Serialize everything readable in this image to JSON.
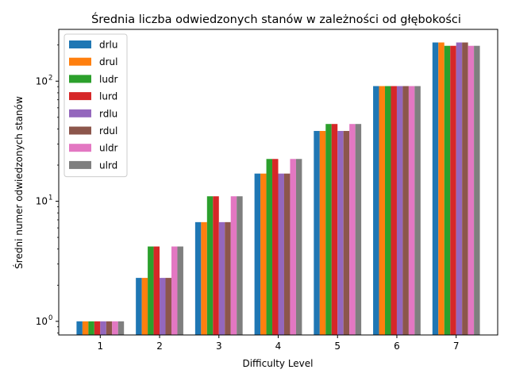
{
  "chart_data": {
    "type": "bar",
    "title": "Średnia liczba odwiedzonych stanów w zależności od głębokości",
    "xlabel": "Difficulty Level",
    "ylabel": "Średni numer odwiedzonych stanów",
    "y_scale": "log",
    "ylim": [
      0.77,
      270
    ],
    "grid": false,
    "legend_position": "top-left",
    "categories": [
      "1",
      "2",
      "3",
      "4",
      "5",
      "6",
      "7"
    ],
    "y_ticks": [
      {
        "value": 1,
        "base": "10",
        "exp": "0"
      },
      {
        "value": 10,
        "base": "10",
        "exp": "1"
      },
      {
        "value": 100,
        "base": "10",
        "exp": "2"
      }
    ],
    "series": [
      {
        "name": "drlu",
        "color": "#1f77b4",
        "values": [
          1.0,
          2.3,
          6.7,
          17.0,
          38.5,
          91.0,
          210.0
        ]
      },
      {
        "name": "drul",
        "color": "#ff7f0e",
        "values": [
          1.0,
          2.3,
          6.7,
          17.0,
          38.5,
          91.0,
          210.0
        ]
      },
      {
        "name": "ludr",
        "color": "#2ca02c",
        "values": [
          1.0,
          4.2,
          11.0,
          22.5,
          44.0,
          91.0,
          197.0
        ]
      },
      {
        "name": "lurd",
        "color": "#d62728",
        "values": [
          1.0,
          4.2,
          11.0,
          22.5,
          44.0,
          91.0,
          197.0
        ]
      },
      {
        "name": "rdlu",
        "color": "#9467bd",
        "values": [
          1.0,
          2.3,
          6.7,
          17.0,
          38.5,
          91.0,
          210.0
        ]
      },
      {
        "name": "rdul",
        "color": "#8c564b",
        "values": [
          1.0,
          2.3,
          6.7,
          17.0,
          38.5,
          91.0,
          210.0
        ]
      },
      {
        "name": "uldr",
        "color": "#e377c2",
        "values": [
          1.0,
          4.2,
          11.0,
          22.5,
          44.0,
          91.0,
          197.0
        ]
      },
      {
        "name": "ulrd",
        "color": "#7f7f7f",
        "values": [
          1.0,
          4.2,
          11.0,
          22.5,
          44.0,
          91.0,
          197.0
        ]
      }
    ]
  }
}
